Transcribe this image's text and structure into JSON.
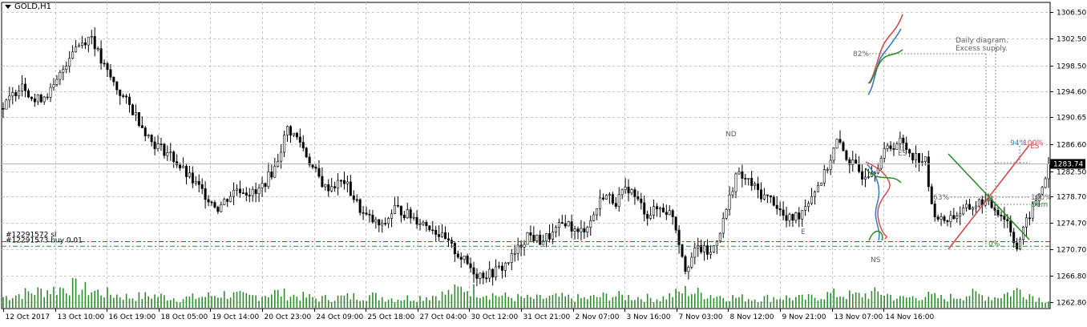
{
  "window": {
    "title": "GOLD,H1"
  },
  "colors": {
    "background": "#ffffff",
    "grid": "#c8c8c8",
    "candle": "#000000",
    "volume": "#2e8b2e",
    "bid_line": "#b4b4b4",
    "price_tag_bg": "#000000",
    "price_tag_text": "#ffffff",
    "order_line_red": "#cc2222",
    "order_line_green": "#2e8b2e",
    "annotation_text": "#606060",
    "red_curve": "#d24a4a",
    "blue_curve": "#3a7ac0",
    "green_curve": "#2e8b2e"
  },
  "orders": [
    {
      "label": "#12291572 sl",
      "color": "red"
    },
    {
      "label": "#12291573 buy 0.01",
      "color": "green"
    }
  ],
  "annotations": {
    "nd": "ND",
    "es_top": "ES",
    "ns": "NS",
    "es_tag": "ES",
    "daily_title": "Daily diagram.",
    "daily_sub": "Excess supply.",
    "pct_82": "82%",
    "pct_63": "63%",
    "pct_94": "94%",
    "pct_100_top": "100%",
    "pct_100": "100%",
    "dem": "Dem",
    "pct_0": "0%",
    "e_marker": "E"
  },
  "current_price": "1283.74",
  "chart_data": {
    "type": "candlestick",
    "title": "GOLD,H1",
    "x_tick_labels": [
      "12 Oct 2017",
      "13 Oct 10:00",
      "16 Oct 19:00",
      "18 Oct 05:00",
      "19 Oct 14:00",
      "20 Oct 23:00",
      "24 Oct 09:00",
      "25 Oct 18:00",
      "27 Oct 04:00",
      "30 Oct 12:00",
      "31 Oct 21:00",
      "2 Nov 07:00",
      "3 Nov 16:00",
      "7 Nov 03:00",
      "8 Nov 12:00",
      "9 Nov 21:00",
      "13 Nov 07:00",
      "14 Nov 16:00"
    ],
    "y_tick_labels": [
      "1306.50",
      "1302.50",
      "1298.50",
      "1294.60",
      "1290.65",
      "1286.60",
      "1282.50",
      "1278.70",
      "1274.70",
      "1270.70",
      "1266.80",
      "1262.80"
    ],
    "ylim": [
      1261.8,
      1308.0
    ],
    "grid": true,
    "price_path": [
      [
        0,
        1292
      ],
      [
        6,
        1296
      ],
      [
        10,
        1293
      ],
      [
        16,
        1295
      ],
      [
        22,
        1301
      ],
      [
        28,
        1303
      ],
      [
        31,
        1299
      ],
      [
        36,
        1295
      ],
      [
        42,
        1291
      ],
      [
        47,
        1287
      ],
      [
        53,
        1285
      ],
      [
        58,
        1282
      ],
      [
        62,
        1280
      ],
      [
        68,
        1277
      ],
      [
        74,
        1280
      ],
      [
        80,
        1279
      ],
      [
        86,
        1283
      ],
      [
        90,
        1289
      ],
      [
        94,
        1287
      ],
      [
        98,
        1283
      ],
      [
        102,
        1280
      ],
      [
        108,
        1281
      ],
      [
        114,
        1276
      ],
      [
        120,
        1274
      ],
      [
        124,
        1277
      ],
      [
        128,
        1276
      ],
      [
        132,
        1275
      ],
      [
        136,
        1274
      ],
      [
        140,
        1272
      ],
      [
        146,
        1269
      ],
      [
        150,
        1267
      ],
      [
        154,
        1267
      ],
      [
        158,
        1268
      ],
      [
        162,
        1270
      ],
      [
        166,
        1273
      ],
      [
        170,
        1272
      ],
      [
        174,
        1273
      ],
      [
        178,
        1275
      ],
      [
        182,
        1273
      ],
      [
        186,
        1275
      ],
      [
        190,
        1279
      ],
      [
        194,
        1278
      ],
      [
        198,
        1280
      ],
      [
        204,
        1276
      ],
      [
        208,
        1277
      ],
      [
        212,
        1276
      ],
      [
        216,
        1268
      ],
      [
        220,
        1271
      ],
      [
        224,
        1270
      ],
      [
        228,
        1275
      ],
      [
        232,
        1282
      ],
      [
        236,
        1281
      ],
      [
        240,
        1279
      ],
      [
        244,
        1278
      ],
      [
        248,
        1275
      ],
      [
        252,
        1276
      ],
      [
        256,
        1279
      ],
      [
        260,
        1282
      ],
      [
        264,
        1287
      ],
      [
        268,
        1284
      ],
      [
        272,
        1282
      ],
      [
        276,
        1283
      ],
      [
        280,
        1286
      ],
      [
        284,
        1287
      ],
      [
        288,
        1285
      ],
      [
        292,
        1284
      ],
      [
        294,
        1277
      ],
      [
        297,
        1275
      ],
      [
        302,
        1276
      ],
      [
        306,
        1277
      ],
      [
        310,
        1278
      ],
      [
        314,
        1277
      ],
      [
        318,
        1275
      ],
      [
        321,
        1271
      ],
      [
        325,
        1276
      ],
      [
        328,
        1279
      ],
      [
        331,
        1283
      ]
    ],
    "volume_scale": [
      0,
      1
    ],
    "volume_profile": [
      [
        0,
        0.35
      ],
      [
        8,
        0.5
      ],
      [
        16,
        0.6
      ],
      [
        22,
        0.7
      ],
      [
        28,
        0.55
      ],
      [
        34,
        0.45
      ],
      [
        40,
        0.35
      ],
      [
        48,
        0.4
      ],
      [
        56,
        0.3
      ],
      [
        62,
        0.35
      ],
      [
        70,
        0.45
      ],
      [
        78,
        0.35
      ],
      [
        86,
        0.5
      ],
      [
        92,
        0.4
      ],
      [
        100,
        0.3
      ],
      [
        108,
        0.35
      ],
      [
        116,
        0.4
      ],
      [
        124,
        0.3
      ],
      [
        132,
        0.35
      ],
      [
        140,
        0.45
      ],
      [
        146,
        0.65
      ],
      [
        152,
        0.5
      ],
      [
        160,
        0.35
      ],
      [
        168,
        0.3
      ],
      [
        176,
        0.35
      ],
      [
        184,
        0.3
      ],
      [
        192,
        0.4
      ],
      [
        200,
        0.35
      ],
      [
        208,
        0.3
      ],
      [
        216,
        0.55
      ],
      [
        222,
        0.45
      ],
      [
        230,
        0.35
      ],
      [
        238,
        0.3
      ],
      [
        246,
        0.35
      ],
      [
        254,
        0.3
      ],
      [
        262,
        0.45
      ],
      [
        270,
        0.4
      ],
      [
        278,
        0.5
      ],
      [
        284,
        0.3
      ],
      [
        292,
        0.4
      ],
      [
        298,
        0.3
      ],
      [
        306,
        0.45
      ],
      [
        314,
        0.35
      ],
      [
        322,
        0.6
      ],
      [
        328,
        0.3
      ],
      [
        331,
        0.25
      ]
    ]
  }
}
